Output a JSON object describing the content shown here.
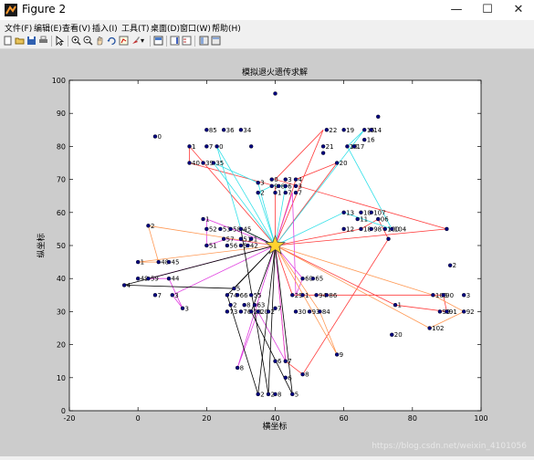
{
  "window": {
    "title": "Figure 2",
    "controls": {
      "minimize": "—",
      "maximize": "☐",
      "close": "✕"
    }
  },
  "menu": [
    {
      "label": "文件(F)",
      "name": "menu-file"
    },
    {
      "label": "编辑(E)",
      "name": "menu-edit"
    },
    {
      "label": "查看(V)",
      "name": "menu-view"
    },
    {
      "label": "插入(I)",
      "name": "menu-insert"
    },
    {
      "label": "工具(T)",
      "name": "menu-tools"
    },
    {
      "label": "桌面(D)",
      "name": "menu-desktop"
    },
    {
      "label": "窗口(W)",
      "name": "menu-window"
    },
    {
      "label": "帮助(H)",
      "name": "menu-help"
    }
  ],
  "toolbar": {
    "icons": [
      "new-figure-icon",
      "open-file-icon",
      "save-icon",
      "print-icon",
      "edit-plot-icon",
      "zoom-in-icon",
      "zoom-out-icon",
      "pan-icon",
      "rotate-3d-icon",
      "data-cursor-icon",
      "brush-icon",
      "link-plot-icon",
      "colorbar-icon",
      "legend-icon",
      "plot-tools-icon",
      "dock-icon"
    ]
  },
  "watermark": "https://blog.csdn.net/weixin_4101056",
  "colors": {
    "red": "#ff3b3b",
    "cyan": "#33e0e8",
    "magenta": "#e040e0",
    "orange": "#ff9955",
    "black": "#000000",
    "star": "#ffd22e",
    "point": "#000080"
  },
  "chart_data": {
    "type": "scatter",
    "title": "模拟退火遗传求解",
    "xlabel": "横坐标",
    "ylabel": "纵坐标",
    "xlim": [
      -20,
      100
    ],
    "ylim": [
      0,
      100
    ],
    "xticks": [
      -20,
      0,
      20,
      40,
      60,
      80,
      100
    ],
    "yticks": [
      0,
      10,
      20,
      30,
      40,
      50,
      60,
      70,
      80,
      90,
      100
    ],
    "center": {
      "x": 40,
      "y": 50,
      "marker": "star"
    },
    "points": [
      {
        "x": 40,
        "y": 96,
        "label": ""
      },
      {
        "x": 5,
        "y": 83,
        "label": "0"
      },
      {
        "x": 70,
        "y": 89,
        "label": ""
      },
      {
        "x": 30,
        "y": 85,
        "label": "34"
      },
      {
        "x": 20,
        "y": 85,
        "label": "85"
      },
      {
        "x": 25,
        "y": 85,
        "label": "36"
      },
      {
        "x": 55,
        "y": 85,
        "label": "22"
      },
      {
        "x": 60,
        "y": 85,
        "label": "19"
      },
      {
        "x": 66,
        "y": 85,
        "label": "15"
      },
      {
        "x": 68,
        "y": 85,
        "label": "14"
      },
      {
        "x": 66,
        "y": 82,
        "label": "16"
      },
      {
        "x": 15,
        "y": 80,
        "label": "1"
      },
      {
        "x": 20,
        "y": 80,
        "label": "7"
      },
      {
        "x": 23,
        "y": 80,
        "label": "0"
      },
      {
        "x": 33,
        "y": 80,
        "label": ""
      },
      {
        "x": 54,
        "y": 80,
        "label": "21"
      },
      {
        "x": 61,
        "y": 80,
        "label": "18"
      },
      {
        "x": 63,
        "y": 80,
        "label": "17"
      },
      {
        "x": 54,
        "y": 78,
        "label": ""
      },
      {
        "x": 15,
        "y": 75,
        "label": "40"
      },
      {
        "x": 19,
        "y": 75,
        "label": "39"
      },
      {
        "x": 22,
        "y": 75,
        "label": "35"
      },
      {
        "x": 58,
        "y": 75,
        "label": "20"
      },
      {
        "x": 35,
        "y": 69,
        "label": "3"
      },
      {
        "x": 39,
        "y": 70,
        "label": "0"
      },
      {
        "x": 43,
        "y": 70,
        "label": "3"
      },
      {
        "x": 46,
        "y": 70,
        "label": "4"
      },
      {
        "x": 39,
        "y": 68,
        "label": "9"
      },
      {
        "x": 41,
        "y": 68,
        "label": "8"
      },
      {
        "x": 43,
        "y": 68,
        "label": "6"
      },
      {
        "x": 46,
        "y": 68,
        "label": "3"
      },
      {
        "x": 35,
        "y": 66,
        "label": "2"
      },
      {
        "x": 40,
        "y": 66,
        "label": "1"
      },
      {
        "x": 43,
        "y": 66,
        "label": "7"
      },
      {
        "x": 46,
        "y": 66,
        "label": "7"
      },
      {
        "x": 60,
        "y": 60,
        "label": "13"
      },
      {
        "x": 65,
        "y": 60,
        "label": "10"
      },
      {
        "x": 68,
        "y": 60,
        "label": "107"
      },
      {
        "x": 64,
        "y": 58,
        "label": "11"
      },
      {
        "x": 70,
        "y": 58,
        "label": "06"
      },
      {
        "x": 19,
        "y": 58,
        "label": "1"
      },
      {
        "x": 3,
        "y": 56,
        "label": "2"
      },
      {
        "x": 60,
        "y": 55,
        "label": "12"
      },
      {
        "x": 65,
        "y": 55,
        "label": "18"
      },
      {
        "x": 68,
        "y": 55,
        "label": "98"
      },
      {
        "x": 72,
        "y": 55,
        "label": "100"
      },
      {
        "x": 74,
        "y": 55,
        "label": "104"
      },
      {
        "x": 90,
        "y": 55,
        "label": ""
      },
      {
        "x": 73,
        "y": 52,
        "label": ""
      },
      {
        "x": 20,
        "y": 55,
        "label": "52"
      },
      {
        "x": 24,
        "y": 55,
        "label": "53"
      },
      {
        "x": 27,
        "y": 55,
        "label": "58"
      },
      {
        "x": 30,
        "y": 55,
        "label": "45"
      },
      {
        "x": 25,
        "y": 52,
        "label": "57"
      },
      {
        "x": 30,
        "y": 52,
        "label": "51"
      },
      {
        "x": 33,
        "y": 52,
        "label": "1"
      },
      {
        "x": 20,
        "y": 50,
        "label": "51"
      },
      {
        "x": 26,
        "y": 50,
        "label": "56"
      },
      {
        "x": 30,
        "y": 50,
        "label": "5"
      },
      {
        "x": 32,
        "y": 50,
        "label": "42"
      },
      {
        "x": 0,
        "y": 45,
        "label": "1"
      },
      {
        "x": 6,
        "y": 45,
        "label": "48"
      },
      {
        "x": 9,
        "y": 45,
        "label": "45"
      },
      {
        "x": -4,
        "y": 38,
        "label": "4"
      },
      {
        "x": 0,
        "y": 40,
        "label": "49"
      },
      {
        "x": 3,
        "y": 40,
        "label": "59"
      },
      {
        "x": 9,
        "y": 40,
        "label": "44"
      },
      {
        "x": 28,
        "y": 37,
        "label": "5"
      },
      {
        "x": 5,
        "y": 35,
        "label": "7"
      },
      {
        "x": 10,
        "y": 35,
        "label": "3"
      },
      {
        "x": 13,
        "y": 31,
        "label": "3"
      },
      {
        "x": 26,
        "y": 35,
        "label": "74"
      },
      {
        "x": 29,
        "y": 35,
        "label": "66"
      },
      {
        "x": 33,
        "y": 35,
        "label": "55"
      },
      {
        "x": 48,
        "y": 40,
        "label": "60"
      },
      {
        "x": 51,
        "y": 40,
        "label": "65"
      },
      {
        "x": 45,
        "y": 35,
        "label": "29"
      },
      {
        "x": 48,
        "y": 35,
        "label": "1"
      },
      {
        "x": 52,
        "y": 35,
        "label": "94"
      },
      {
        "x": 55,
        "y": 35,
        "label": "86"
      },
      {
        "x": 27,
        "y": 32,
        "label": "2"
      },
      {
        "x": 31,
        "y": 32,
        "label": "8"
      },
      {
        "x": 34,
        "y": 32,
        "label": "63"
      },
      {
        "x": 26,
        "y": 30,
        "label": "73"
      },
      {
        "x": 30,
        "y": 30,
        "label": "76"
      },
      {
        "x": 33,
        "y": 30,
        "label": "20"
      },
      {
        "x": 35,
        "y": 30,
        "label": "20"
      },
      {
        "x": 38,
        "y": 30,
        "label": "2"
      },
      {
        "x": 40,
        "y": 31,
        "label": "7"
      },
      {
        "x": 46,
        "y": 30,
        "label": "30"
      },
      {
        "x": 50,
        "y": 30,
        "label": "93"
      },
      {
        "x": 53,
        "y": 30,
        "label": "84"
      },
      {
        "x": 75,
        "y": 32,
        "label": "1"
      },
      {
        "x": 86,
        "y": 35,
        "label": "103"
      },
      {
        "x": 89,
        "y": 35,
        "label": "90"
      },
      {
        "x": 95,
        "y": 35,
        "label": "3"
      },
      {
        "x": 88,
        "y": 30,
        "label": "99"
      },
      {
        "x": 90,
        "y": 30,
        "label": "91"
      },
      {
        "x": 95,
        "y": 30,
        "label": "92"
      },
      {
        "x": 91,
        "y": 44,
        "label": "2"
      },
      {
        "x": 85,
        "y": 25,
        "label": "102"
      },
      {
        "x": 74,
        "y": 23,
        "label": "20"
      },
      {
        "x": 58,
        "y": 17,
        "label": "9"
      },
      {
        "x": 40,
        "y": 15,
        "label": "6"
      },
      {
        "x": 43,
        "y": 15,
        "label": "7"
      },
      {
        "x": 29,
        "y": 13,
        "label": "8"
      },
      {
        "x": 48,
        "y": 11,
        "label": "8"
      },
      {
        "x": 43,
        "y": 10,
        "label": "6"
      },
      {
        "x": 35,
        "y": 5,
        "label": "2"
      },
      {
        "x": 38,
        "y": 5,
        "label": "2"
      },
      {
        "x": 40,
        "y": 5,
        "label": "8"
      },
      {
        "x": 45,
        "y": 5,
        "label": "5"
      }
    ],
    "routes": [
      {
        "color": "red",
        "path": [
          [
            40,
            50
          ],
          [
            54,
            85
          ],
          [
            40,
            70
          ],
          [
            90,
            55
          ],
          [
            40,
            50
          ]
        ]
      },
      {
        "color": "red",
        "path": [
          [
            40,
            50
          ],
          [
            15,
            80
          ],
          [
            15,
            75
          ],
          [
            40,
            68
          ],
          [
            40,
            50
          ]
        ]
      },
      {
        "color": "red",
        "path": [
          [
            40,
            50
          ],
          [
            75,
            32
          ],
          [
            90,
            30
          ],
          [
            89,
            35
          ],
          [
            45,
            35
          ],
          [
            40,
            50
          ]
        ]
      },
      {
        "color": "red",
        "path": [
          [
            40,
            50
          ],
          [
            58,
            75
          ],
          [
            46,
            70
          ],
          [
            40,
            50
          ]
        ]
      },
      {
        "color": "red",
        "path": [
          [
            40,
            50
          ],
          [
            65,
            55
          ],
          [
            70,
            58
          ],
          [
            73,
            52
          ],
          [
            48,
            11
          ],
          [
            43,
            15
          ],
          [
            40,
            50
          ]
        ]
      },
      {
        "color": "cyan",
        "path": [
          [
            40,
            50
          ],
          [
            66,
            85
          ],
          [
            61,
            80
          ],
          [
            74,
            55
          ],
          [
            60,
            60
          ],
          [
            40,
            50
          ]
        ]
      },
      {
        "color": "cyan",
        "path": [
          [
            40,
            50
          ],
          [
            23,
            80
          ],
          [
            30,
            55
          ],
          [
            40,
            50
          ]
        ]
      },
      {
        "color": "cyan",
        "path": [
          [
            40,
            50
          ],
          [
            43,
            68
          ],
          [
            39,
            68
          ],
          [
            35,
            66
          ],
          [
            40,
            50
          ]
        ]
      },
      {
        "color": "cyan",
        "path": [
          [
            40,
            50
          ],
          [
            22,
            75
          ],
          [
            35,
            69
          ],
          [
            40,
            50
          ]
        ]
      },
      {
        "color": "magenta",
        "path": [
          [
            40,
            50
          ],
          [
            3,
            40
          ],
          [
            9,
            40
          ],
          [
            13,
            31
          ],
          [
            10,
            35
          ],
          [
            40,
            50
          ]
        ]
      },
      {
        "color": "magenta",
        "path": [
          [
            40,
            50
          ],
          [
            20,
            58
          ],
          [
            20,
            50
          ],
          [
            26,
            52
          ],
          [
            40,
            50
          ]
        ]
      },
      {
        "color": "magenta",
        "path": [
          [
            40,
            50
          ],
          [
            45,
            66
          ],
          [
            46,
            35
          ],
          [
            48,
            40
          ],
          [
            40,
            50
          ]
        ]
      },
      {
        "color": "magenta",
        "path": [
          [
            40,
            50
          ],
          [
            29,
            13
          ],
          [
            35,
            30
          ],
          [
            43,
            15
          ],
          [
            40,
            50
          ]
        ]
      },
      {
        "color": "orange",
        "path": [
          [
            40,
            50
          ],
          [
            3,
            56
          ],
          [
            6,
            45
          ],
          [
            0,
            45
          ],
          [
            40,
            50
          ]
        ]
      },
      {
        "color": "orange",
        "path": [
          [
            40,
            50
          ],
          [
            86,
            35
          ],
          [
            95,
            30
          ],
          [
            85,
            25
          ],
          [
            40,
            50
          ]
        ]
      },
      {
        "color": "orange",
        "path": [
          [
            40,
            50
          ],
          [
            58,
            17
          ],
          [
            53,
            30
          ],
          [
            40,
            50
          ]
        ]
      },
      {
        "color": "black",
        "path": [
          [
            40,
            50
          ],
          [
            -4,
            38
          ],
          [
            28,
            37
          ],
          [
            40,
            50
          ]
        ]
      },
      {
        "color": "black",
        "path": [
          [
            40,
            50
          ],
          [
            30,
            55
          ],
          [
            38,
            5
          ],
          [
            40,
            50
          ]
        ]
      },
      {
        "color": "black",
        "path": [
          [
            40,
            50
          ],
          [
            33,
            30
          ],
          [
            45,
            5
          ],
          [
            40,
            50
          ]
        ]
      },
      {
        "color": "black",
        "path": [
          [
            40,
            50
          ],
          [
            26,
            35
          ],
          [
            35,
            5
          ],
          [
            40,
            50
          ]
        ]
      }
    ]
  }
}
